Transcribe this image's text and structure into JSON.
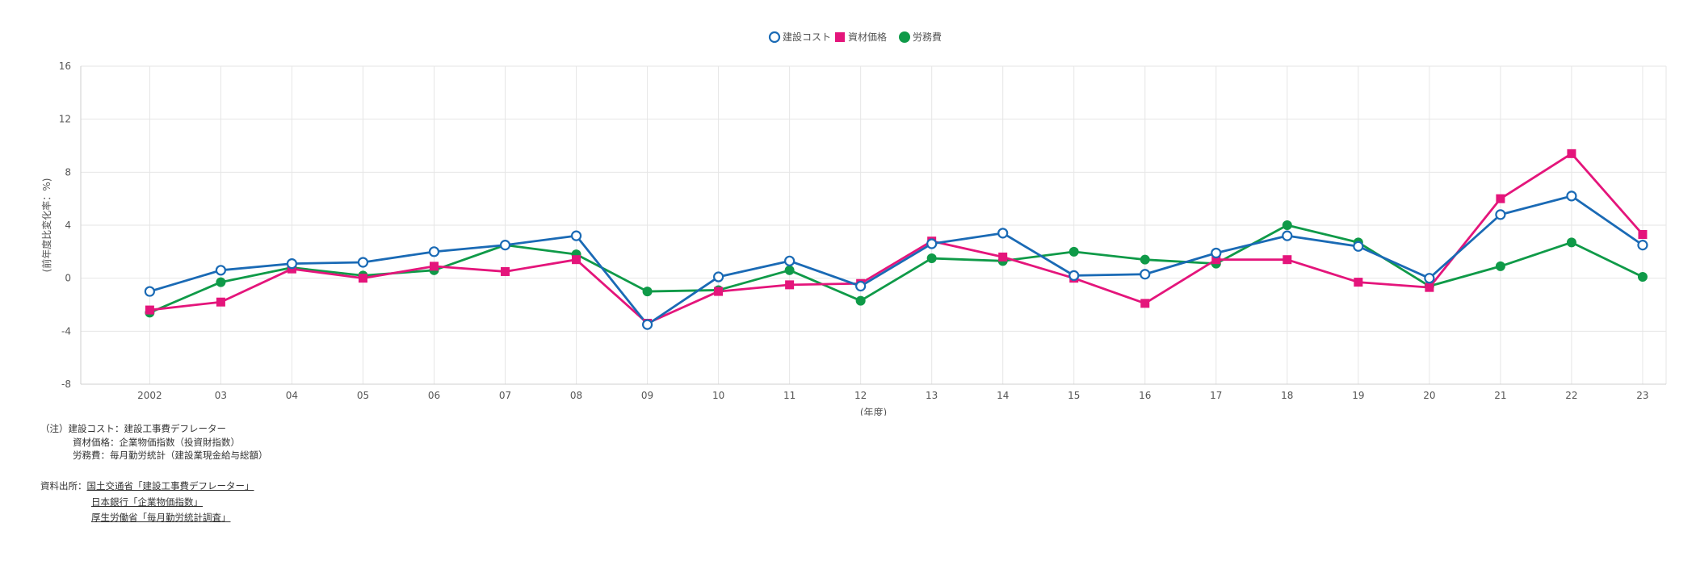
{
  "chart_data": {
    "type": "line",
    "categories": [
      "2002",
      "03",
      "04",
      "05",
      "06",
      "07",
      "08",
      "09",
      "10",
      "11",
      "12",
      "13",
      "14",
      "15",
      "16",
      "17",
      "18",
      "19",
      "20",
      "21",
      "22",
      "23"
    ],
    "xlabel": "(年度)",
    "ylabel": "(前年度比変化率：%)",
    "ylim": [
      -8,
      16
    ],
    "yticks": [
      -8,
      -4,
      0,
      4,
      8,
      12,
      16
    ],
    "grid": true,
    "legend_position": "top-center",
    "series": [
      {
        "name": "建設コスト",
        "color": "#1a6ab5",
        "marker": "circle-open",
        "values": [
          -1.0,
          0.6,
          1.1,
          1.2,
          2.0,
          2.5,
          3.2,
          -3.5,
          0.1,
          1.3,
          -0.6,
          2.6,
          3.4,
          0.2,
          0.3,
          1.9,
          3.2,
          2.4,
          0.0,
          4.8,
          6.2,
          2.5
        ]
      },
      {
        "name": "資材価格",
        "color": "#e4157b",
        "marker": "square",
        "values": [
          -2.4,
          -1.8,
          0.7,
          0.0,
          0.9,
          0.5,
          1.4,
          -3.4,
          -1.0,
          -0.5,
          -0.4,
          2.8,
          1.6,
          0.0,
          -1.9,
          1.4,
          1.4,
          -0.3,
          -0.7,
          6.0,
          9.4,
          3.3
        ]
      },
      {
        "name": "労務費",
        "color": "#0f9a48",
        "marker": "circle",
        "values": [
          -2.6,
          -0.3,
          0.8,
          0.2,
          0.6,
          2.5,
          1.8,
          -1.0,
          -0.9,
          0.6,
          -1.7,
          1.5,
          1.3,
          2.0,
          1.4,
          1.1,
          4.0,
          2.7,
          -0.6,
          0.9,
          2.7,
          0.1
        ]
      }
    ]
  },
  "notes": {
    "line1": "（注）建設コスト：建設工事費デフレーター",
    "line2": "資材価格：企業物価指数（投資財指数）",
    "line3": "労務費：毎月勤労統計（建設業現金給与総額）"
  },
  "sources": {
    "label": "資料出所：",
    "link1": "国土交通省「建設工事費デフレーター」",
    "link2": "日本銀行「企業物価指数」",
    "link3": "厚生労働省「毎月勤労統計調査」"
  }
}
